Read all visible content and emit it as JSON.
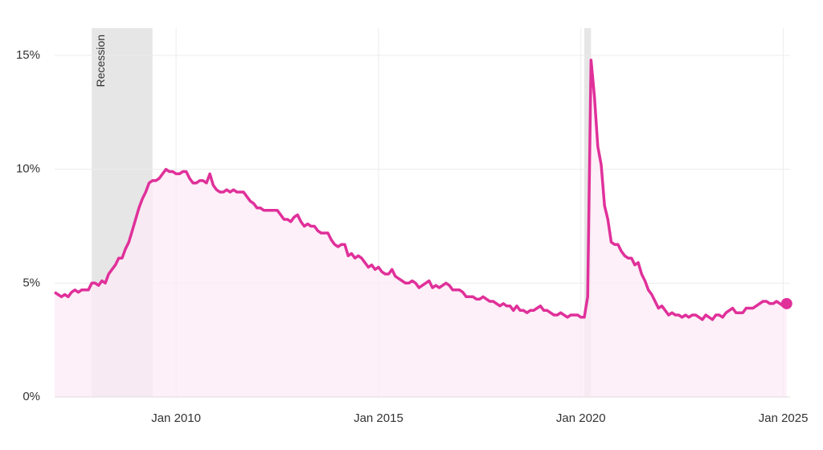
{
  "chart_data": {
    "type": "area-line",
    "x": [
      "2007-01",
      "2007-02",
      "2007-03",
      "2007-04",
      "2007-05",
      "2007-06",
      "2007-07",
      "2007-08",
      "2007-09",
      "2007-10",
      "2007-11",
      "2007-12",
      "2008-01",
      "2008-02",
      "2008-03",
      "2008-04",
      "2008-05",
      "2008-06",
      "2008-07",
      "2008-08",
      "2008-09",
      "2008-10",
      "2008-11",
      "2008-12",
      "2009-01",
      "2009-02",
      "2009-03",
      "2009-04",
      "2009-05",
      "2009-06",
      "2009-07",
      "2009-08",
      "2009-09",
      "2009-10",
      "2009-11",
      "2009-12",
      "2010-01",
      "2010-02",
      "2010-03",
      "2010-04",
      "2010-05",
      "2010-06",
      "2010-07",
      "2010-08",
      "2010-09",
      "2010-10",
      "2010-11",
      "2010-12",
      "2011-01",
      "2011-02",
      "2011-03",
      "2011-04",
      "2011-05",
      "2011-06",
      "2011-07",
      "2011-08",
      "2011-09",
      "2011-10",
      "2011-11",
      "2011-12",
      "2012-01",
      "2012-02",
      "2012-03",
      "2012-04",
      "2012-05",
      "2012-06",
      "2012-07",
      "2012-08",
      "2012-09",
      "2012-10",
      "2012-11",
      "2012-12",
      "2013-01",
      "2013-02",
      "2013-03",
      "2013-04",
      "2013-05",
      "2013-06",
      "2013-07",
      "2013-08",
      "2013-09",
      "2013-10",
      "2013-11",
      "2013-12",
      "2014-01",
      "2014-02",
      "2014-03",
      "2014-04",
      "2014-05",
      "2014-06",
      "2014-07",
      "2014-08",
      "2014-09",
      "2014-10",
      "2014-11",
      "2014-12",
      "2015-01",
      "2015-02",
      "2015-03",
      "2015-04",
      "2015-05",
      "2015-06",
      "2015-07",
      "2015-08",
      "2015-09",
      "2015-10",
      "2015-11",
      "2015-12",
      "2016-01",
      "2016-02",
      "2016-03",
      "2016-04",
      "2016-05",
      "2016-06",
      "2016-07",
      "2016-08",
      "2016-09",
      "2016-10",
      "2016-11",
      "2016-12",
      "2017-01",
      "2017-02",
      "2017-03",
      "2017-04",
      "2017-05",
      "2017-06",
      "2017-07",
      "2017-08",
      "2017-09",
      "2017-10",
      "2017-11",
      "2017-12",
      "2018-01",
      "2018-02",
      "2018-03",
      "2018-04",
      "2018-05",
      "2018-06",
      "2018-07",
      "2018-08",
      "2018-09",
      "2018-10",
      "2018-11",
      "2018-12",
      "2019-01",
      "2019-02",
      "2019-03",
      "2019-04",
      "2019-05",
      "2019-06",
      "2019-07",
      "2019-08",
      "2019-09",
      "2019-10",
      "2019-11",
      "2019-12",
      "2020-01",
      "2020-02",
      "2020-03",
      "2020-04",
      "2020-05",
      "2020-06",
      "2020-07",
      "2020-08",
      "2020-09",
      "2020-10",
      "2020-11",
      "2020-12",
      "2021-01",
      "2021-02",
      "2021-03",
      "2021-04",
      "2021-05",
      "2021-06",
      "2021-07",
      "2021-08",
      "2021-09",
      "2021-10",
      "2021-11",
      "2021-12",
      "2022-01",
      "2022-02",
      "2022-03",
      "2022-04",
      "2022-05",
      "2022-06",
      "2022-07",
      "2022-08",
      "2022-09",
      "2022-10",
      "2022-11",
      "2022-12",
      "2023-01",
      "2023-02",
      "2023-03",
      "2023-04",
      "2023-05",
      "2023-06",
      "2023-07",
      "2023-08",
      "2023-09",
      "2023-10",
      "2023-11",
      "2023-12",
      "2024-01",
      "2024-02",
      "2024-03",
      "2024-04",
      "2024-05",
      "2024-06",
      "2024-07",
      "2024-08",
      "2024-09",
      "2024-10",
      "2024-11",
      "2024-12",
      "2025-01",
      "2025-02"
    ],
    "values": [
      4.6,
      4.5,
      4.4,
      4.5,
      4.4,
      4.6,
      4.7,
      4.6,
      4.7,
      4.7,
      4.7,
      5.0,
      5.0,
      4.9,
      5.1,
      5.0,
      5.4,
      5.6,
      5.8,
      6.1,
      6.1,
      6.5,
      6.8,
      7.3,
      7.8,
      8.3,
      8.7,
      9.0,
      9.4,
      9.5,
      9.5,
      9.6,
      9.8,
      10.0,
      9.9,
      9.9,
      9.8,
      9.8,
      9.9,
      9.9,
      9.6,
      9.4,
      9.4,
      9.5,
      9.5,
      9.4,
      9.8,
      9.3,
      9.1,
      9.0,
      9.0,
      9.1,
      9.0,
      9.1,
      9.0,
      9.0,
      9.0,
      8.8,
      8.6,
      8.5,
      8.3,
      8.3,
      8.2,
      8.2,
      8.2,
      8.2,
      8.2,
      8.0,
      7.8,
      7.8,
      7.7,
      7.9,
      8.0,
      7.7,
      7.5,
      7.6,
      7.5,
      7.5,
      7.3,
      7.2,
      7.2,
      7.2,
      6.9,
      6.7,
      6.6,
      6.7,
      6.7,
      6.2,
      6.3,
      6.1,
      6.2,
      6.1,
      5.9,
      5.7,
      5.8,
      5.6,
      5.7,
      5.5,
      5.4,
      5.4,
      5.6,
      5.3,
      5.2,
      5.1,
      5.0,
      5.0,
      5.1,
      5.0,
      4.8,
      4.9,
      5.0,
      5.1,
      4.8,
      4.9,
      4.8,
      4.9,
      5.0,
      4.9,
      4.7,
      4.7,
      4.7,
      4.6,
      4.4,
      4.4,
      4.4,
      4.3,
      4.3,
      4.4,
      4.3,
      4.2,
      4.2,
      4.1,
      4.0,
      4.1,
      4.0,
      4.0,
      3.8,
      4.0,
      3.8,
      3.8,
      3.7,
      3.8,
      3.8,
      3.9,
      4.0,
      3.8,
      3.8,
      3.7,
      3.6,
      3.6,
      3.7,
      3.6,
      3.5,
      3.6,
      3.6,
      3.6,
      3.5,
      3.5,
      4.4,
      14.8,
      13.2,
      11.0,
      10.2,
      8.4,
      7.8,
      6.8,
      6.7,
      6.7,
      6.4,
      6.2,
      6.1,
      6.1,
      5.8,
      5.9,
      5.4,
      5.1,
      4.7,
      4.5,
      4.2,
      3.9,
      4.0,
      3.8,
      3.6,
      3.7,
      3.6,
      3.6,
      3.5,
      3.6,
      3.5,
      3.6,
      3.6,
      3.5,
      3.4,
      3.6,
      3.5,
      3.4,
      3.6,
      3.6,
      3.5,
      3.7,
      3.8,
      3.9,
      3.7,
      3.7,
      3.7,
      3.9,
      3.9,
      3.9,
      4.0,
      4.1,
      4.2,
      4.2,
      4.1,
      4.1,
      4.2,
      4.1,
      4.0,
      4.1
    ],
    "color": "#e0309a",
    "fill": "#fcebf6",
    "xlim": [
      "2007-01",
      "2025-03"
    ],
    "xticks": [
      {
        "value": "2010-01",
        "label": "Jan 2010"
      },
      {
        "value": "2015-01",
        "label": "Jan 2015"
      },
      {
        "value": "2020-01",
        "label": "Jan 2020"
      },
      {
        "value": "2025-01",
        "label": "Jan 2025"
      }
    ],
    "ylim": [
      0,
      16.2
    ],
    "yticks": [
      {
        "value": 0,
        "label": "0%"
      },
      {
        "value": 5,
        "label": "5%"
      },
      {
        "value": 10,
        "label": "10%"
      },
      {
        "value": 15,
        "label": "15%"
      }
    ],
    "grid": true,
    "recession_label": "Recession",
    "recessions": [
      {
        "start": "2007-12",
        "end": "2009-06"
      },
      {
        "start": "2020-02",
        "end": "2020-04"
      }
    ]
  }
}
